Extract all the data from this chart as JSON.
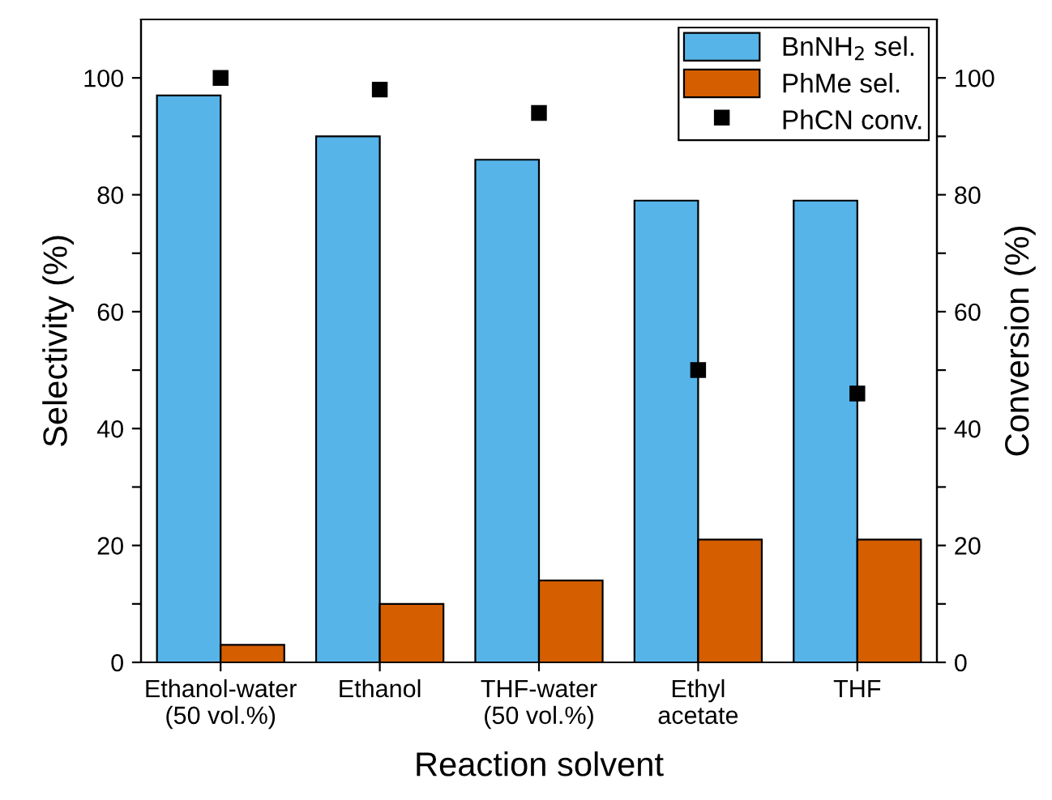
{
  "chart_data": {
    "type": "bar",
    "xlabel": "Reaction solvent",
    "ylabel": "Selectivity (%)",
    "y2label": "Conversion (%)",
    "categories": [
      "Ethanol-water\n(50 vol.%)",
      "Ethanol",
      "THF-water\n(50 vol.%)",
      "Ethyl\nacetate",
      "THF"
    ],
    "series": [
      {
        "name": "BnNH$_{2}$ sel.",
        "color": "#56b4e9",
        "values": [
          97,
          90,
          86,
          79,
          79
        ]
      },
      {
        "name": "PhMe sel.",
        "color": "#d55e00",
        "values": [
          3,
          10,
          14,
          21,
          21
        ]
      },
      {
        "name": "PhCN conv.",
        "type": "scatter",
        "axis": "y2",
        "color": "#000000",
        "marker": "square",
        "values": [
          100,
          98,
          94,
          50,
          46
        ]
      }
    ],
    "ylim": [
      0,
      110
    ],
    "yticks": [
      0,
      {
        "value": 10,
        "label": null
      },
      20,
      {
        "value": 30,
        "label": null
      },
      40,
      {
        "value": 50,
        "label": null
      },
      60,
      {
        "value": 70,
        "label": null
      },
      80,
      {
        "value": 90,
        "label": null
      },
      100
    ],
    "y2lim": [
      0,
      110
    ],
    "y2ticks": [
      0,
      {
        "value": 10,
        "label": null
      },
      20,
      {
        "value": 30,
        "label": null
      },
      40,
      {
        "value": 50,
        "label": null
      },
      60,
      {
        "value": 70,
        "label": null
      },
      80,
      {
        "value": 90,
        "label": null
      },
      100
    ],
    "legend": "top right",
    "grid": false
  }
}
